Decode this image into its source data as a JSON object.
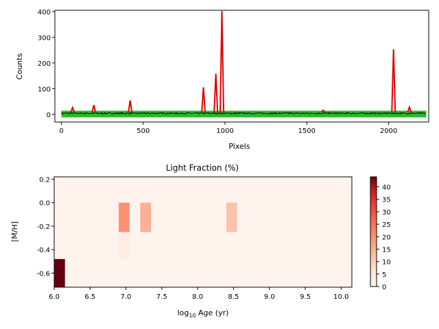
{
  "chart_data": [
    {
      "type": "line",
      "title": "",
      "xlabel": "Pixels",
      "ylabel": "Counts",
      "xlim": [
        -40,
        2245
      ],
      "ylim": [
        -30,
        405
      ],
      "xticks": [
        0,
        500,
        1000,
        1500,
        2000
      ],
      "yticks": [
        0,
        100,
        200,
        300,
        400
      ],
      "grid": false,
      "legend": "none",
      "noise_band": {
        "x_start": 0,
        "x_end": 2230,
        "y_min": -12,
        "y_max": 14
      },
      "colors": {
        "band": "#2db82d",
        "observed": "#000000",
        "model": "#e00000"
      },
      "peaks": [
        {
          "x": 68,
          "y": 26
        },
        {
          "x": 198,
          "y": 36
        },
        {
          "x": 420,
          "y": 54
        },
        {
          "x": 868,
          "y": 105
        },
        {
          "x": 944,
          "y": 158
        },
        {
          "x": 981,
          "y": 402
        },
        {
          "x": 1600,
          "y": 16
        },
        {
          "x": 2030,
          "y": 253
        },
        {
          "x": 2127,
          "y": 28
        }
      ]
    },
    {
      "type": "heatmap",
      "title": "Light Fraction (%)",
      "xlabel_main": "log",
      "xlabel_sub": "10",
      "xlabel_rest": " Age (yr)",
      "ylabel": "[M/H]",
      "xlim": [
        6.0,
        10.15
      ],
      "ylim": [
        -0.72,
        0.22
      ],
      "xticks": [
        "6.0",
        "6.5",
        "7.0",
        "7.5",
        "8.0",
        "8.5",
        "9.0",
        "9.5",
        "10.0"
      ],
      "yticks": [
        "0.2",
        "0.0",
        "-0.2",
        "-0.4",
        "-0.6"
      ],
      "colorbar": {
        "min": 0,
        "max": 44,
        "ticks": [
          "0",
          "5",
          "10",
          "15",
          "20",
          "25",
          "30",
          "35",
          "40"
        ]
      },
      "background_value": 0.5,
      "cells": [
        {
          "x0": 6.0,
          "x1": 6.15,
          "y0": -0.72,
          "y1": -0.48,
          "value": 44
        },
        {
          "x0": 6.9,
          "x1": 7.05,
          "y0": -0.25,
          "y1": 0.0,
          "value": 20
        },
        {
          "x0": 6.9,
          "x1": 7.05,
          "y0": -0.48,
          "y1": -0.25,
          "value": 3
        },
        {
          "x0": 7.2,
          "x1": 7.35,
          "y0": -0.25,
          "y1": 0.0,
          "value": 15
        },
        {
          "x0": 8.4,
          "x1": 8.55,
          "y0": -0.25,
          "y1": 0.0,
          "value": 12
        }
      ]
    }
  ]
}
